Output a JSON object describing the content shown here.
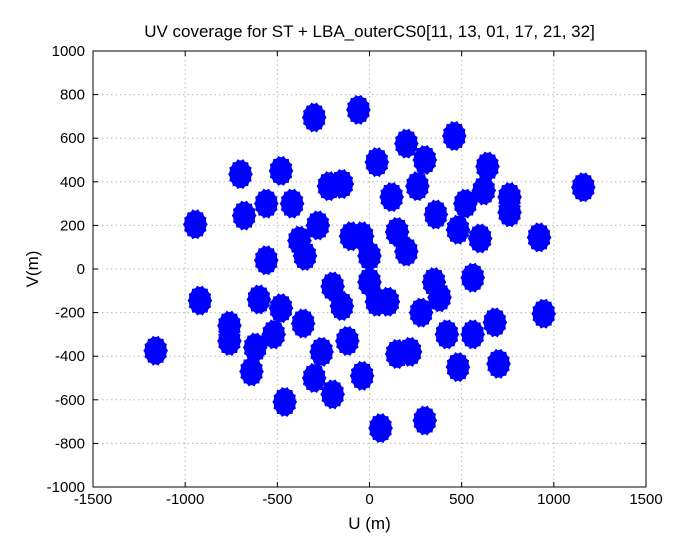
{
  "chart_data": {
    "type": "scatter",
    "title": "UV coverage for ST + LBA_outerCS0[11, 13, 01, 17, 21, 32]",
    "xlabel": "U (m)",
    "ylabel": "V(m)",
    "xlim": [
      -1500,
      1500
    ],
    "ylim": [
      -1000,
      1000
    ],
    "xticks": [
      -1500,
      -1000,
      -500,
      0,
      500,
      1000,
      1500
    ],
    "yticks": [
      -1000,
      -800,
      -600,
      -400,
      -200,
      0,
      200,
      400,
      600,
      800,
      1000
    ],
    "xtick_labels": [
      "-1500",
      "-1000",
      "-500",
      "0",
      "500",
      "1000",
      "1500"
    ],
    "ytick_labels": [
      "-1000",
      "-800",
      "-600",
      "-400",
      "-200",
      "0",
      "200",
      "400",
      "600",
      "800",
      "1000"
    ],
    "grid": true,
    "marker_color": "#0000ff",
    "blob_radius_m": 60,
    "tracks": [
      {
        "u": -1160,
        "v": -375
      },
      {
        "u": 1160,
        "v": 375
      },
      {
        "u": -945,
        "v": 205
      },
      {
        "u": 945,
        "v": -205
      },
      {
        "u": -920,
        "v": -145
      },
      {
        "u": 920,
        "v": 145
      },
      {
        "u": -300,
        "v": 695
      },
      {
        "u": 300,
        "v": -695
      },
      {
        "u": -60,
        "v": 730
      },
      {
        "u": 60,
        "v": -730
      },
      {
        "u": 460,
        "v": 610
      },
      {
        "u": -460,
        "v": -610
      },
      {
        "u": 200,
        "v": 575
      },
      {
        "u": -200,
        "v": -575
      },
      {
        "u": -700,
        "v": 435
      },
      {
        "u": 700,
        "v": -435
      },
      {
        "u": -680,
        "v": 245
      },
      {
        "u": 680,
        "v": -245
      },
      {
        "u": -760,
        "v": -260
      },
      {
        "u": 760,
        "v": 260
      },
      {
        "u": -640,
        "v": -470
      },
      {
        "u": 640,
        "v": 470
      },
      {
        "u": -480,
        "v": 450
      },
      {
        "u": 480,
        "v": -450
      },
      {
        "u": -150,
        "v": 390
      },
      {
        "u": 150,
        "v": -390
      },
      {
        "u": 40,
        "v": 490
      },
      {
        "u": -40,
        "v": -490
      },
      {
        "u": 300,
        "v": 500
      },
      {
        "u": -300,
        "v": -500
      },
      {
        "u": -420,
        "v": 300
      },
      {
        "u": 420,
        "v": -300
      },
      {
        "u": -560,
        "v": 300
      },
      {
        "u": 560,
        "v": -300
      },
      {
        "u": 360,
        "v": 250
      },
      {
        "u": -360,
        "v": -250
      },
      {
        "u": -280,
        "v": 200
      },
      {
        "u": 280,
        "v": -200
      },
      {
        "u": -100,
        "v": 150
      },
      {
        "u": 100,
        "v": -150
      },
      {
        "u": 200,
        "v": 80
      },
      {
        "u": -200,
        "v": -80
      },
      {
        "u": -350,
        "v": 60
      },
      {
        "u": 350,
        "v": -60
      },
      {
        "u": 600,
        "v": 140
      },
      {
        "u": -600,
        "v": -140
      },
      {
        "u": 560,
        "v": -40
      },
      {
        "u": -560,
        "v": 40
      },
      {
        "u": 760,
        "v": 330
      },
      {
        "u": -760,
        "v": -330
      },
      {
        "u": 620,
        "v": 360
      },
      {
        "u": -620,
        "v": -360
      },
      {
        "u": 0,
        "v": 60
      },
      {
        "u": 0,
        "v": -60
      },
      {
        "u": -520,
        "v": -300
      },
      {
        "u": 520,
        "v": 300
      },
      {
        "u": -220,
        "v": 380
      },
      {
        "u": 220,
        "v": -380
      },
      {
        "u": 120,
        "v": 330
      },
      {
        "u": -120,
        "v": -330
      },
      {
        "u": 480,
        "v": 180
      },
      {
        "u": -480,
        "v": -180
      },
      {
        "u": -150,
        "v": -170
      },
      {
        "u": 150,
        "v": 170
      },
      {
        "u": 40,
        "v": -150
      },
      {
        "u": -40,
        "v": 150
      },
      {
        "u": -260,
        "v": -380
      },
      {
        "u": 260,
        "v": 380
      },
      {
        "u": 380,
        "v": -130
      },
      {
        "u": -380,
        "v": 130
      }
    ]
  }
}
